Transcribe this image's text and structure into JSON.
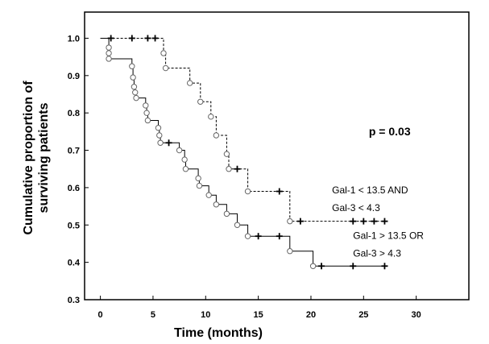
{
  "chart_data": {
    "type": "line",
    "title": "",
    "xlabel": "Time (months)",
    "ylabel_lines": [
      "Cumulative proportion of",
      "surviving patients"
    ],
    "xlim": [
      -1.5,
      35
    ],
    "ylim": [
      0.3,
      1.07
    ],
    "x_ticks": [
      0,
      5,
      10,
      15,
      20,
      25,
      30
    ],
    "y_ticks": [
      0.3,
      0.4,
      0.5,
      0.6,
      0.7,
      0.8,
      0.9,
      1.0
    ],
    "x_tick_labels": [
      "0",
      "5",
      "10",
      "15",
      "20",
      "25",
      "30"
    ],
    "y_tick_labels": [
      "0.3",
      "0.4",
      "0.5",
      "0.6",
      "0.7",
      "0.8",
      "0.9",
      "1.0"
    ],
    "grid": false,
    "annotations": [
      {
        "text": "p = 0.03",
        "x": 25.5,
        "y": 0.74
      },
      {
        "text": "Gal-1 < 13.5 AND",
        "x": 22,
        "y": 0.585
      },
      {
        "text": "Gal-3 < 4.3",
        "x": 22,
        "y": 0.537
      },
      {
        "text": "Gal-1 > 13.5 OR",
        "x": 24,
        "y": 0.463
      },
      {
        "text": "Gal-3 > 4.3",
        "x": 24,
        "y": 0.415
      }
    ],
    "series": [
      {
        "style": "dashed",
        "steps": [
          [
            0,
            1.0
          ],
          [
            6,
            1.0
          ],
          [
            6,
            0.96
          ],
          [
            6.2,
            0.96
          ],
          [
            6.2,
            0.92
          ],
          [
            8.5,
            0.92
          ],
          [
            8.5,
            0.88
          ],
          [
            9.5,
            0.88
          ],
          [
            9.5,
            0.83
          ],
          [
            10.5,
            0.83
          ],
          [
            10.5,
            0.79
          ],
          [
            11,
            0.79
          ],
          [
            11,
            0.74
          ],
          [
            12,
            0.74
          ],
          [
            12,
            0.69
          ],
          [
            12.2,
            0.69
          ],
          [
            12.2,
            0.65
          ],
          [
            14,
            0.65
          ],
          [
            14,
            0.59
          ],
          [
            18,
            0.59
          ],
          [
            18,
            0.51
          ],
          [
            27,
            0.51
          ]
        ],
        "events": [
          [
            6,
            0.96
          ],
          [
            6.2,
            0.92
          ],
          [
            8.5,
            0.88
          ],
          [
            9.5,
            0.83
          ],
          [
            10.5,
            0.79
          ],
          [
            11,
            0.74
          ],
          [
            12,
            0.69
          ],
          [
            12.2,
            0.65
          ],
          [
            14,
            0.59
          ],
          [
            18,
            0.51
          ]
        ],
        "censored": [
          [
            1,
            1.0
          ],
          [
            3,
            1.0
          ],
          [
            4.5,
            1.0
          ],
          [
            5.2,
            1.0
          ],
          [
            13,
            0.65
          ],
          [
            17,
            0.59
          ],
          [
            19,
            0.51
          ],
          [
            24,
            0.51
          ],
          [
            25,
            0.51
          ],
          [
            26,
            0.51
          ],
          [
            27,
            0.51
          ]
        ]
      },
      {
        "style": "solid",
        "steps": [
          [
            0,
            1.0
          ],
          [
            0.8,
            1.0
          ],
          [
            0.8,
            0.975
          ],
          [
            0.8,
            0.96
          ],
          [
            0.8,
            0.945
          ],
          [
            3,
            0.945
          ],
          [
            3,
            0.925
          ],
          [
            3.1,
            0.925
          ],
          [
            3.1,
            0.895
          ],
          [
            3.2,
            0.895
          ],
          [
            3.2,
            0.87
          ],
          [
            3.3,
            0.87
          ],
          [
            3.3,
            0.855
          ],
          [
            3.4,
            0.855
          ],
          [
            3.4,
            0.84
          ],
          [
            4.3,
            0.84
          ],
          [
            4.3,
            0.82
          ],
          [
            4.4,
            0.82
          ],
          [
            4.4,
            0.8
          ],
          [
            4.5,
            0.8
          ],
          [
            4.5,
            0.78
          ],
          [
            5.5,
            0.78
          ],
          [
            5.5,
            0.76
          ],
          [
            5.6,
            0.76
          ],
          [
            5.6,
            0.74
          ],
          [
            5.7,
            0.74
          ],
          [
            5.7,
            0.72
          ],
          [
            7.5,
            0.72
          ],
          [
            7.5,
            0.7
          ],
          [
            8,
            0.7
          ],
          [
            8,
            0.675
          ],
          [
            8.1,
            0.675
          ],
          [
            8.1,
            0.65
          ],
          [
            9.3,
            0.65
          ],
          [
            9.3,
            0.625
          ],
          [
            9.4,
            0.625
          ],
          [
            9.4,
            0.605
          ],
          [
            10.3,
            0.605
          ],
          [
            10.3,
            0.58
          ],
          [
            11,
            0.58
          ],
          [
            11,
            0.555
          ],
          [
            12,
            0.555
          ],
          [
            12,
            0.53
          ],
          [
            13,
            0.53
          ],
          [
            13,
            0.5
          ],
          [
            14,
            0.5
          ],
          [
            14,
            0.47
          ],
          [
            18,
            0.47
          ],
          [
            18,
            0.43
          ],
          [
            20.2,
            0.43
          ],
          [
            20.2,
            0.39
          ],
          [
            27,
            0.39
          ]
        ],
        "events": [
          [
            0.8,
            0.975
          ],
          [
            0.8,
            0.96
          ],
          [
            0.8,
            0.945
          ],
          [
            3,
            0.925
          ],
          [
            3.1,
            0.895
          ],
          [
            3.2,
            0.87
          ],
          [
            3.3,
            0.855
          ],
          [
            3.4,
            0.84
          ],
          [
            4.3,
            0.82
          ],
          [
            4.4,
            0.8
          ],
          [
            4.5,
            0.78
          ],
          [
            5.5,
            0.76
          ],
          [
            5.6,
            0.74
          ],
          [
            5.7,
            0.72
          ],
          [
            7.5,
            0.7
          ],
          [
            8,
            0.675
          ],
          [
            8.1,
            0.65
          ],
          [
            9.3,
            0.625
          ],
          [
            9.4,
            0.605
          ],
          [
            10.3,
            0.58
          ],
          [
            11,
            0.555
          ],
          [
            12,
            0.53
          ],
          [
            13,
            0.5
          ],
          [
            14,
            0.47
          ],
          [
            18,
            0.43
          ],
          [
            20.2,
            0.39
          ]
        ],
        "censored": [
          [
            6.5,
            0.72
          ],
          [
            15,
            0.47
          ],
          [
            17,
            0.47
          ],
          [
            21,
            0.39
          ],
          [
            24,
            0.39
          ],
          [
            27,
            0.39
          ]
        ]
      }
    ]
  }
}
